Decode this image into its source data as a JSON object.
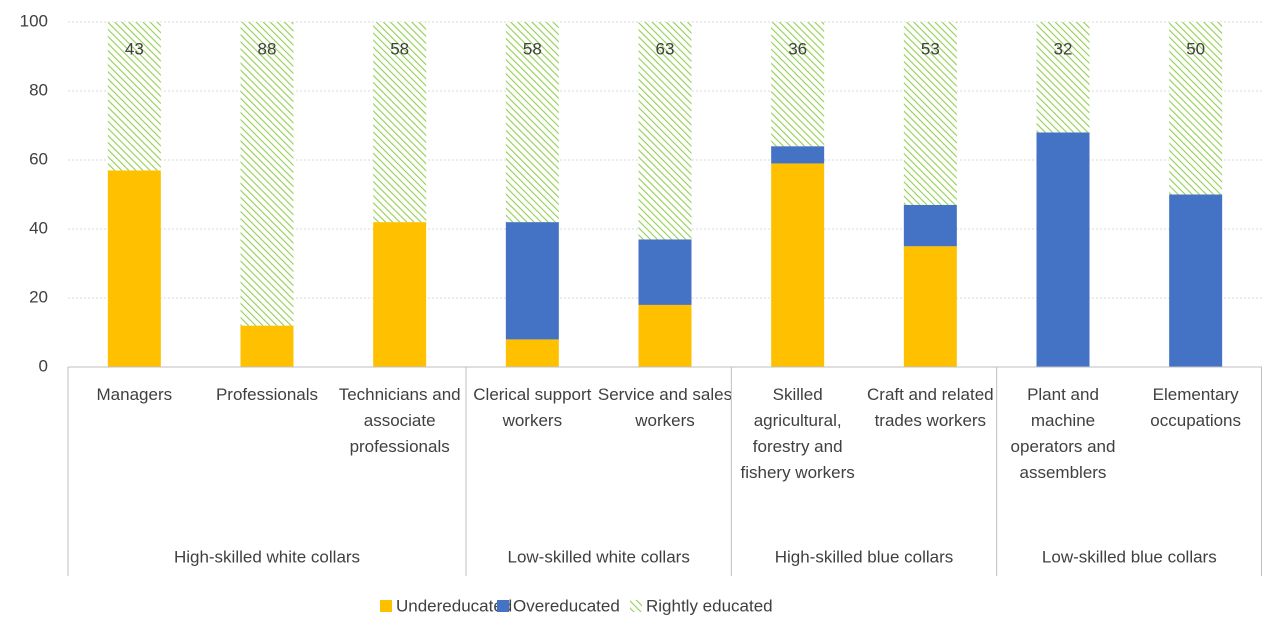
{
  "chart_data": {
    "type": "stacked_bar",
    "groups": [
      {
        "name": "High-skilled white collars",
        "categories": [
          "Managers",
          "Professionals",
          "Technicians and associate professionals"
        ]
      },
      {
        "name": "Low-skilled white collars",
        "categories": [
          "Clerical support workers",
          "Service and sales workers"
        ]
      },
      {
        "name": "High-skilled blue collars",
        "categories": [
          "Skilled agricultural, forestry and fishery workers",
          "Craft and related trades workers"
        ]
      },
      {
        "name": "Low-skilled blue collars",
        "categories": [
          "Plant and machine operators and assemblers",
          "Elementary occupations"
        ]
      }
    ],
    "series": [
      {
        "name": "Undereducated",
        "color": "#FFC000",
        "values": [
          57,
          12,
          42,
          8,
          18,
          59,
          35,
          0,
          0
        ]
      },
      {
        "name": "Overeducated",
        "color": "#4472C4",
        "values": [
          0,
          0,
          0,
          34,
          19,
          5,
          12,
          68,
          50
        ]
      },
      {
        "name": "Rightly educated",
        "color": "#92D050",
        "hatch": true,
        "data_labels": true,
        "values": [
          43,
          88,
          58,
          58,
          63,
          36,
          53,
          32,
          50
        ]
      }
    ],
    "ylim": [
      0,
      100
    ],
    "yticks": [
      0,
      20,
      40,
      60,
      80,
      100
    ],
    "grid": true,
    "legend": "bottom"
  }
}
